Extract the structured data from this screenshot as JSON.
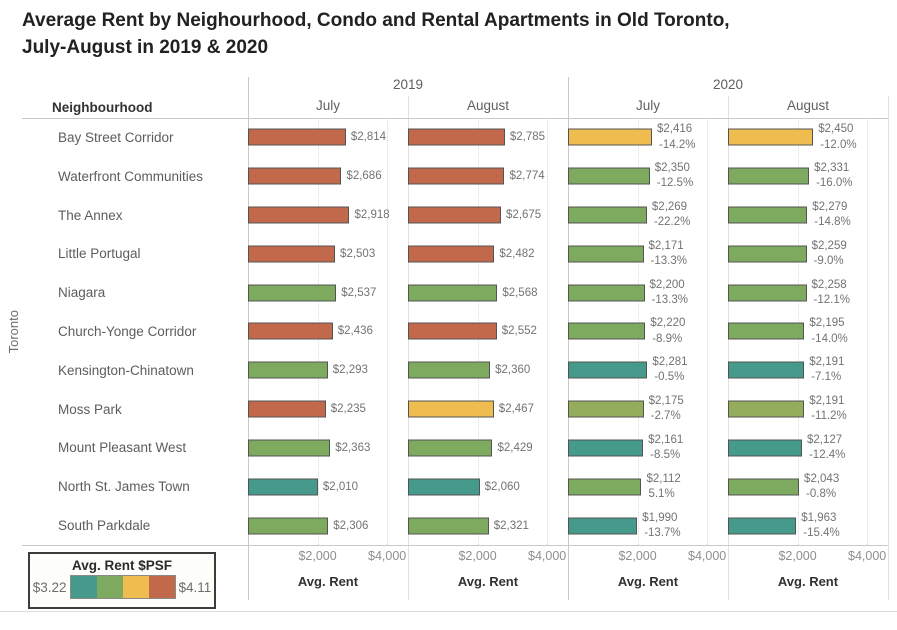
{
  "title": {
    "line1": "Average Rent by Neighourhood, Condo and Rental Apartments in Old Toronto,",
    "line2": "July-August in 2019 & 2020"
  },
  "table": {
    "row_header": "Neighbourhood",
    "region_label": "Toronto",
    "year_groups": [
      {
        "label": "2019",
        "months": [
          "July",
          "August"
        ]
      },
      {
        "label": "2020",
        "months": [
          "July",
          "August"
        ]
      }
    ],
    "axis": {
      "ticks": [
        "$2,000",
        "$4,000"
      ],
      "tick_values": [
        2000,
        4000
      ],
      "max": 4600,
      "label": "Avg. Rent"
    }
  },
  "legend": {
    "title": "Avg. Rent $PSF",
    "min": "$3.22",
    "max": "$4.11",
    "swatch_order": [
      "teal",
      "green",
      "yellow",
      "red"
    ]
  },
  "colors": {
    "teal": "#459a8b",
    "green": "#7daa5f",
    "lightgreen": "#93ad5d",
    "yellow": "#efbc4f",
    "red": "#c2694c",
    "bar_border": "#545454"
  },
  "chart_data": {
    "type": "bar",
    "title": "Average Rent by Neighourhood, Condo and Rental Apartments in Old Toronto, July-August in 2019 & 2020",
    "xlabel": "Avg. Rent",
    "xlim": [
      0,
      4600
    ],
    "color_encoding": "Avg. Rent $PSF ($3.22 teal to $4.11 red)",
    "columns": [
      "2019 July",
      "2019 August",
      "2020 July",
      "2020 August"
    ],
    "rows": [
      {
        "name": "Bay Street Corridor",
        "bars": [
          {
            "value": 2814,
            "label": "$2,814",
            "color": "red"
          },
          {
            "value": 2785,
            "label": "$2,785",
            "color": "red"
          },
          {
            "value": 2416,
            "label": "$2,416",
            "pct": "-14.2%",
            "color": "yellow"
          },
          {
            "value": 2450,
            "label": "$2,450",
            "pct": "-12.0%",
            "color": "yellow"
          }
        ]
      },
      {
        "name": "Waterfront Communities",
        "bars": [
          {
            "value": 2686,
            "label": "$2,686",
            "color": "red"
          },
          {
            "value": 2774,
            "label": "$2,774",
            "color": "red"
          },
          {
            "value": 2350,
            "label": "$2,350",
            "pct": "-12.5%",
            "color": "green"
          },
          {
            "value": 2331,
            "label": "$2,331",
            "pct": "-16.0%",
            "color": "green"
          }
        ]
      },
      {
        "name": "The Annex",
        "bars": [
          {
            "value": 2918,
            "label": "$2,918",
            "color": "red"
          },
          {
            "value": 2675,
            "label": "$2,675",
            "color": "red"
          },
          {
            "value": 2269,
            "label": "$2,269",
            "pct": "-22.2%",
            "color": "green"
          },
          {
            "value": 2279,
            "label": "$2,279",
            "pct": "-14.8%",
            "color": "green"
          }
        ]
      },
      {
        "name": "Little Portugal",
        "bars": [
          {
            "value": 2503,
            "label": "$2,503",
            "color": "red"
          },
          {
            "value": 2482,
            "label": "$2,482",
            "color": "red"
          },
          {
            "value": 2171,
            "label": "$2,171",
            "pct": "-13.3%",
            "color": "green"
          },
          {
            "value": 2259,
            "label": "$2,259",
            "pct": "-9.0%",
            "color": "green"
          }
        ]
      },
      {
        "name": "Niagara",
        "bars": [
          {
            "value": 2537,
            "label": "$2,537",
            "color": "green"
          },
          {
            "value": 2568,
            "label": "$2,568",
            "color": "green"
          },
          {
            "value": 2200,
            "label": "$2,200",
            "pct": "-13.3%",
            "color": "green"
          },
          {
            "value": 2258,
            "label": "$2,258",
            "pct": "-12.1%",
            "color": "green"
          }
        ]
      },
      {
        "name": "Church-Yonge Corridor",
        "bars": [
          {
            "value": 2436,
            "label": "$2,436",
            "color": "red"
          },
          {
            "value": 2552,
            "label": "$2,552",
            "color": "red"
          },
          {
            "value": 2220,
            "label": "$2,220",
            "pct": "-8.9%",
            "color": "green"
          },
          {
            "value": 2195,
            "label": "$2,195",
            "pct": "-14.0%",
            "color": "green"
          }
        ]
      },
      {
        "name": "Kensington-Chinatown",
        "bars": [
          {
            "value": 2293,
            "label": "$2,293",
            "color": "green"
          },
          {
            "value": 2360,
            "label": "$2,360",
            "color": "green"
          },
          {
            "value": 2281,
            "label": "$2,281",
            "pct": "-0.5%",
            "color": "teal"
          },
          {
            "value": 2191,
            "label": "$2,191",
            "pct": "-7.1%",
            "color": "teal"
          }
        ]
      },
      {
        "name": "Moss Park",
        "bars": [
          {
            "value": 2235,
            "label": "$2,235",
            "color": "red"
          },
          {
            "value": 2467,
            "label": "$2,467",
            "color": "yellow"
          },
          {
            "value": 2175,
            "label": "$2,175",
            "pct": "-2.7%",
            "color": "lightgreen"
          },
          {
            "value": 2191,
            "label": "$2,191",
            "pct": "-11.2%",
            "color": "lightgreen"
          }
        ]
      },
      {
        "name": "Mount Pleasant West",
        "bars": [
          {
            "value": 2363,
            "label": "$2,363",
            "color": "green"
          },
          {
            "value": 2429,
            "label": "$2,429",
            "color": "green"
          },
          {
            "value": 2161,
            "label": "$2,161",
            "pct": "-8.5%",
            "color": "teal"
          },
          {
            "value": 2127,
            "label": "$2,127",
            "pct": "-12.4%",
            "color": "teal"
          }
        ]
      },
      {
        "name": "North St. James Town",
        "bars": [
          {
            "value": 2010,
            "label": "$2,010",
            "color": "teal"
          },
          {
            "value": 2060,
            "label": "$2,060",
            "color": "teal"
          },
          {
            "value": 2112,
            "label": "$2,112",
            "pct": "5.1%",
            "color": "green"
          },
          {
            "value": 2043,
            "label": "$2,043",
            "pct": "-0.8%",
            "color": "green"
          }
        ]
      },
      {
        "name": "South Parkdale",
        "bars": [
          {
            "value": 2306,
            "label": "$2,306",
            "color": "green"
          },
          {
            "value": 2321,
            "label": "$2,321",
            "color": "green"
          },
          {
            "value": 1990,
            "label": "$1,990",
            "pct": "-13.7%",
            "color": "teal"
          },
          {
            "value": 1963,
            "label": "$1,963",
            "pct": "-15.4%",
            "color": "teal"
          }
        ]
      }
    ]
  }
}
